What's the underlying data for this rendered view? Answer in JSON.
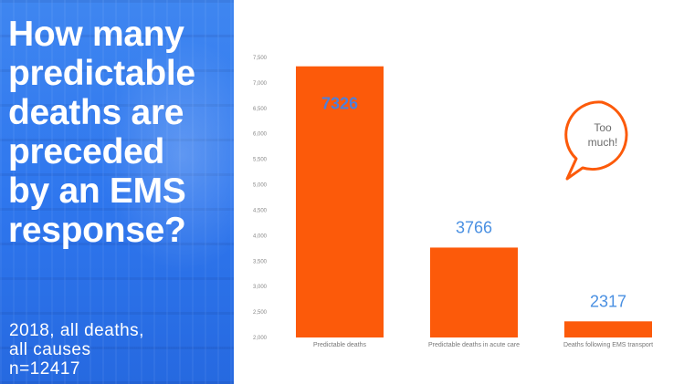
{
  "slide": {
    "question_lines": [
      "How many",
      "predictable",
      "deaths are",
      "preceded",
      "by an EMS",
      "response?"
    ],
    "note_lines": [
      "2018, all deaths,",
      "all causes",
      "n=12417"
    ],
    "callout_lines": [
      "Too",
      "much!"
    ]
  },
  "colors": {
    "panel_blue": "#2f77ee",
    "bar": "#fc5a0a",
    "label_blue": "#4a90e2",
    "label_first": "#4e7fd8",
    "callout_border": "#fc5a0a"
  },
  "chart_data": {
    "type": "bar",
    "categories": [
      "Predictable deaths",
      "Predictable deaths in acute care",
      "Deaths following EMS transport"
    ],
    "values": [
      7326,
      3766,
      2317
    ],
    "data_labels": [
      "7326",
      "3766",
      "2317"
    ],
    "title": "",
    "xlabel": "",
    "ylabel": "",
    "ylim": [
      2000,
      7500
    ],
    "yticks": [
      2000,
      2500,
      3000,
      3500,
      4000,
      4500,
      5000,
      5500,
      6000,
      6500,
      7000,
      7500
    ],
    "ytick_labels": [
      "2,000",
      "2,500",
      "3,000",
      "3,500",
      "4,000",
      "4,500",
      "5,000",
      "5,500",
      "6,000",
      "6,500",
      "7,000",
      "7,500"
    ],
    "grid": false,
    "legend": "none"
  }
}
